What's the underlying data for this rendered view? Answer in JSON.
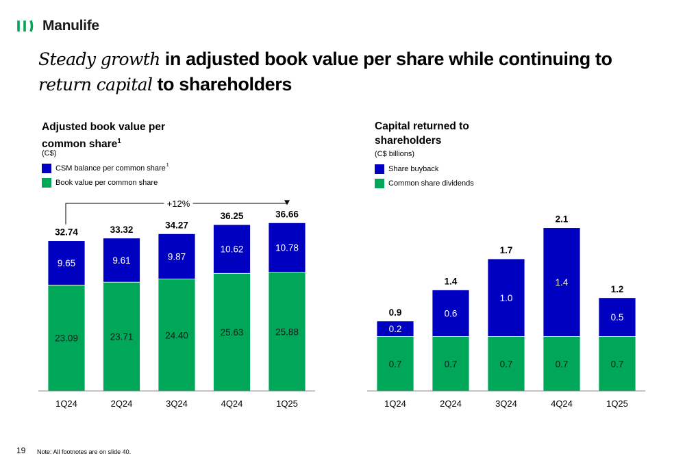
{
  "brand": {
    "name": "Manulife",
    "color": "#00a758"
  },
  "headline": {
    "part1_italic": "Steady growth",
    "part1_bold": " in adjusted book value per share while continuing to",
    "part2_italic": "return capital",
    "part2_bold": " to shareholders"
  },
  "colors": {
    "blue": "#0000c1",
    "green": "#00a758"
  },
  "left_panel": {
    "title_line1": "Adjusted book value per",
    "title_line2": "common share",
    "title_sup": "1",
    "unit": "(C$)",
    "legend": [
      {
        "label": "CSM balance per common share",
        "sup": "1",
        "color": "#0000c1"
      },
      {
        "label": "Book value per common share",
        "sup": "",
        "color": "#00a758"
      }
    ],
    "growth_label": "+12%"
  },
  "right_panel": {
    "title_line1": "Capital returned to",
    "title_line2": "shareholders",
    "unit": "(C$ billions)",
    "legend": [
      {
        "label": "Share buyback",
        "color": "#0000c1"
      },
      {
        "label": "Common share dividends",
        "color": "#00a758"
      }
    ]
  },
  "chart_data": [
    {
      "type": "bar",
      "stacked": true,
      "title": "Adjusted book value per common share",
      "categories": [
        "1Q24",
        "2Q24",
        "3Q24",
        "4Q24",
        "1Q25"
      ],
      "series": [
        {
          "name": "Book value per common share",
          "values": [
            23.09,
            23.71,
            24.4,
            25.63,
            25.88
          ],
          "labels": [
            "23.09",
            "23.71",
            "24.40",
            "25.63",
            "25.88"
          ]
        },
        {
          "name": "CSM balance per common share",
          "values": [
            9.65,
            9.61,
            9.87,
            10.62,
            10.78
          ],
          "labels": [
            "9.65",
            "9.61",
            "9.87",
            "10.62",
            "10.78"
          ]
        }
      ],
      "totals": [
        "32.74",
        "33.32",
        "34.27",
        "36.25",
        "36.66"
      ],
      "annotation": "+12%"
    },
    {
      "type": "bar",
      "stacked": true,
      "title": "Capital returned to shareholders",
      "categories": [
        "1Q24",
        "2Q24",
        "3Q24",
        "4Q24",
        "1Q25"
      ],
      "series": [
        {
          "name": "Common share dividends",
          "values": [
            0.7,
            0.7,
            0.7,
            0.7,
            0.7
          ],
          "labels": [
            "0.7",
            "0.7",
            "0.7",
            "0.7",
            "0.7"
          ]
        },
        {
          "name": "Share buyback",
          "values": [
            0.2,
            0.6,
            1.0,
            1.4,
            0.5
          ],
          "labels": [
            "0.2",
            "0.6",
            "1.0",
            "1.4",
            "0.5"
          ]
        }
      ],
      "totals": [
        "0.9",
        "1.4",
        "1.7",
        "2.1",
        "1.2"
      ]
    }
  ],
  "footer": {
    "page_number": "19",
    "note": "Note: All footnotes are on slide 40."
  }
}
